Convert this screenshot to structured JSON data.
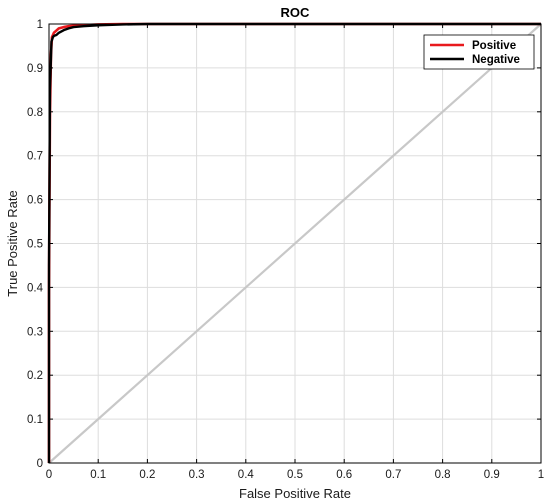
{
  "chart_data": {
    "type": "line",
    "title": "ROC",
    "xlabel": "False Positive Rate",
    "ylabel": "True Positive Rate",
    "xlim": [
      0,
      1
    ],
    "ylim": [
      0,
      1
    ],
    "xticks": [
      "0",
      "0.1",
      "0.2",
      "0.3",
      "0.4",
      "0.5",
      "0.6",
      "0.7",
      "0.8",
      "0.9",
      "1"
    ],
    "yticks": [
      "0",
      "0.1",
      "0.2",
      "0.3",
      "0.4",
      "0.5",
      "0.6",
      "0.7",
      "0.8",
      "0.9",
      "1"
    ],
    "grid": true,
    "legend_position": "top-right",
    "reference_line": {
      "x": [
        0,
        1
      ],
      "y": [
        0,
        1
      ],
      "color": "#c8c8c8"
    },
    "series": [
      {
        "name": "Positive",
        "color": "#e8191d",
        "x": [
          0,
          0,
          0.002,
          0.004,
          0.006,
          0.008,
          0.01,
          0.015,
          0.02,
          0.03,
          0.04,
          0.06,
          0.08,
          0.1,
          0.15,
          0.2,
          0.3,
          0.5,
          0.7,
          1.0
        ],
        "y": [
          0,
          0.4,
          0.8,
          0.93,
          0.97,
          0.975,
          0.98,
          0.985,
          0.99,
          0.993,
          0.995,
          0.997,
          0.998,
          0.999,
          1.0,
          1.0,
          1.0,
          1.0,
          1.0,
          1.0
        ]
      },
      {
        "name": "Negative",
        "color": "#000000",
        "x": [
          0,
          0,
          0.002,
          0.005,
          0.008,
          0.01,
          0.015,
          0.02,
          0.03,
          0.04,
          0.05,
          0.07,
          0.1,
          0.15,
          0.2,
          0.3,
          0.5,
          0.7,
          1.0
        ],
        "y": [
          0,
          0.45,
          0.85,
          0.96,
          0.97,
          0.973,
          0.975,
          0.98,
          0.986,
          0.99,
          0.993,
          0.995,
          0.997,
          0.999,
          1.0,
          1.0,
          1.0,
          1.0,
          1.0
        ]
      }
    ]
  }
}
